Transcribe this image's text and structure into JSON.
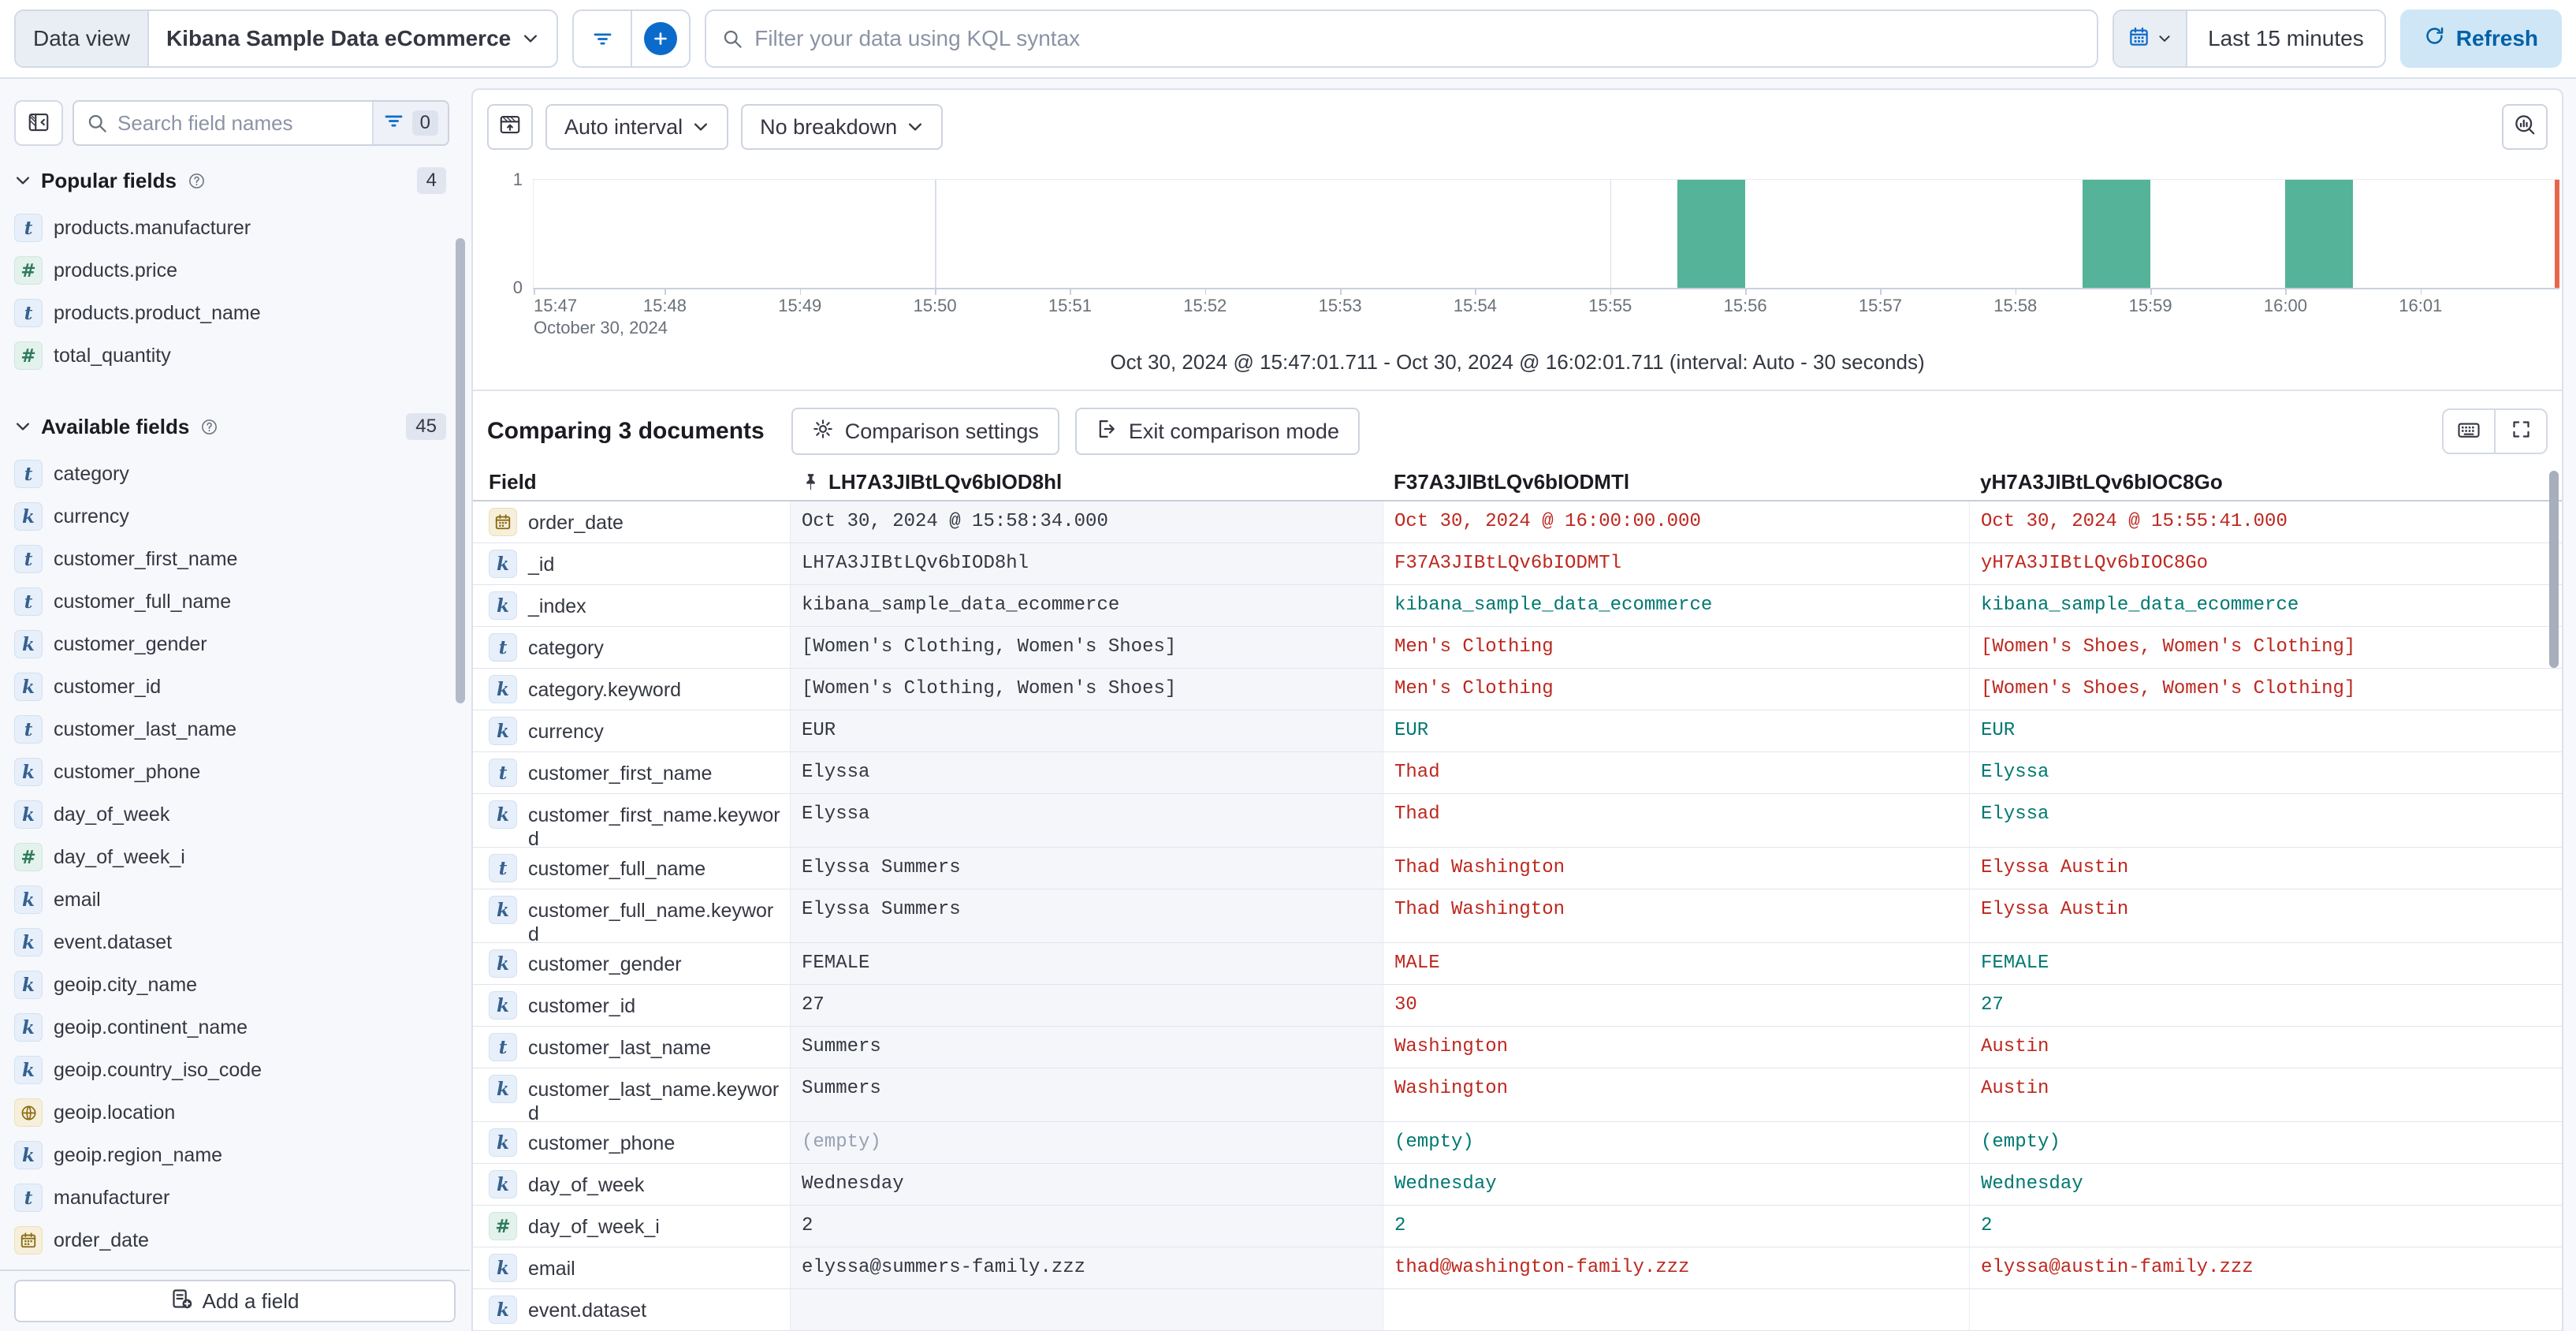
{
  "top_bar": {
    "data_view_label": "Data view",
    "data_view_value": "Kibana Sample Data eCommerce",
    "kql_placeholder": "Filter your data using KQL syntax",
    "time_range": "Last 15 minutes",
    "refresh_label": "Refresh"
  },
  "sidebar": {
    "search_placeholder": "Search field names",
    "filter_count": "0",
    "sections": [
      {
        "title": "Popular fields",
        "count": "4",
        "fields": [
          {
            "type": "text",
            "name": "products.manufacturer"
          },
          {
            "type": "number",
            "name": "products.price"
          },
          {
            "type": "text",
            "name": "products.product_name"
          },
          {
            "type": "number",
            "name": "total_quantity"
          }
        ]
      },
      {
        "title": "Available fields",
        "count": "45",
        "fields": [
          {
            "type": "text",
            "name": "category"
          },
          {
            "type": "keyword",
            "name": "currency"
          },
          {
            "type": "text",
            "name": "customer_first_name"
          },
          {
            "type": "text",
            "name": "customer_full_name"
          },
          {
            "type": "keyword",
            "name": "customer_gender"
          },
          {
            "type": "keyword",
            "name": "customer_id"
          },
          {
            "type": "text",
            "name": "customer_last_name"
          },
          {
            "type": "keyword",
            "name": "customer_phone"
          },
          {
            "type": "keyword",
            "name": "day_of_week"
          },
          {
            "type": "number",
            "name": "day_of_week_i"
          },
          {
            "type": "keyword",
            "name": "email"
          },
          {
            "type": "keyword",
            "name": "event.dataset"
          },
          {
            "type": "keyword",
            "name": "geoip.city_name"
          },
          {
            "type": "keyword",
            "name": "geoip.continent_name"
          },
          {
            "type": "keyword",
            "name": "geoip.country_iso_code"
          },
          {
            "type": "geo_point",
            "name": "geoip.location"
          },
          {
            "type": "keyword",
            "name": "geoip.region_name"
          },
          {
            "type": "text",
            "name": "manufacturer"
          },
          {
            "type": "date",
            "name": "order_date"
          }
        ]
      }
    ],
    "add_field_label": "Add a field"
  },
  "chart": {
    "interval_label": "Auto interval",
    "breakdown_label": "No breakdown",
    "footer": "Oct 30, 2024 @ 15:47:01.711 - Oct 30, 2024 @ 16:02:01.711 (interval: Auto - 30 seconds)"
  },
  "chart_data": {
    "type": "bar",
    "x_start": "15:47:01.711",
    "x_end": "16:02:01.711",
    "x_date_label": "October 30, 2024",
    "x_ticks": [
      "15:47",
      "15:48",
      "15:49",
      "15:50",
      "15:51",
      "15:52",
      "15:53",
      "15:54",
      "15:55",
      "15:56",
      "15:57",
      "15:58",
      "15:59",
      "16:00",
      "16:01"
    ],
    "major_gridlines": [
      "15:50",
      "15:55",
      "16:00"
    ],
    "y_ticks": [
      0,
      1
    ],
    "ylim": [
      0,
      1
    ],
    "bar_interval_seconds": 30,
    "bars": [
      {
        "time": "15:55:30",
        "value": 1
      },
      {
        "time": "15:58:30",
        "value": 1
      },
      {
        "time": "16:00:00",
        "value": 1
      }
    ],
    "end_marker_time": "16:02:01.711",
    "bar_color": "#54b399",
    "end_marker_color": "#e7664c",
    "legend": "off",
    "grid": "minimal"
  },
  "comparison": {
    "title": "Comparing 3 documents",
    "settings_label": "Comparison settings",
    "exit_label": "Exit comparison mode"
  },
  "table": {
    "field_header": "Field",
    "doc_columns": [
      {
        "id": "LH7A3JIBtLQv6bIOD8hl",
        "pinned": true
      },
      {
        "id": "F37A3JIBtLQv6bIODMTl",
        "pinned": false
      },
      {
        "id": "yH7A3JIBtLQv6bIOC8Go",
        "pinned": false
      }
    ],
    "rows": [
      {
        "field": "order_date",
        "icon": "date",
        "values": [
          {
            "text": "Oct 30, 2024 @ 15:58:34.000",
            "status": "base"
          },
          {
            "text": "Oct 30, 2024 @ 16:00:00.000",
            "status": "diff"
          },
          {
            "text": "Oct 30, 2024 @ 15:55:41.000",
            "status": "diff"
          }
        ]
      },
      {
        "field": "_id",
        "icon": "keyword",
        "values": [
          {
            "text": "LH7A3JIBtLQv6bIOD8hl",
            "status": "base"
          },
          {
            "text": "F37A3JIBtLQv6bIODMTl",
            "status": "diff"
          },
          {
            "text": "yH7A3JIBtLQv6bIOC8Go",
            "status": "diff"
          }
        ]
      },
      {
        "field": "_index",
        "icon": "keyword",
        "values": [
          {
            "text": "kibana_sample_data_ecommerce",
            "status": "base"
          },
          {
            "text": "kibana_sample_data_ecommerce",
            "status": "match"
          },
          {
            "text": "kibana_sample_data_ecommerce",
            "status": "match"
          }
        ]
      },
      {
        "field": "category",
        "icon": "text",
        "values": [
          {
            "text": "[Women's Clothing, Women's Shoes]",
            "status": "base"
          },
          {
            "text": "Men's Clothing",
            "status": "diff"
          },
          {
            "text": "[Women's Shoes, Women's Clothing]",
            "status": "diff"
          }
        ]
      },
      {
        "field": "category.keyword",
        "icon": "keyword",
        "values": [
          {
            "text": "[Women's Clothing, Women's Shoes]",
            "status": "base"
          },
          {
            "text": "Men's Clothing",
            "status": "diff"
          },
          {
            "text": "[Women's Shoes, Women's Clothing]",
            "status": "diff"
          }
        ]
      },
      {
        "field": "currency",
        "icon": "keyword",
        "values": [
          {
            "text": "EUR",
            "status": "base"
          },
          {
            "text": "EUR",
            "status": "match"
          },
          {
            "text": "EUR",
            "status": "match"
          }
        ]
      },
      {
        "field": "customer_first_name",
        "icon": "text",
        "values": [
          {
            "text": "Elyssa",
            "status": "base"
          },
          {
            "text": "Thad",
            "status": "diff"
          },
          {
            "text": "Elyssa",
            "status": "match"
          }
        ]
      },
      {
        "field": "customer_first_name.keyword",
        "icon": "keyword",
        "values": [
          {
            "text": "Elyssa",
            "status": "base"
          },
          {
            "text": "Thad",
            "status": "diff"
          },
          {
            "text": "Elyssa",
            "status": "match"
          }
        ]
      },
      {
        "field": "customer_full_name",
        "icon": "text",
        "values": [
          {
            "text": "Elyssa Summers",
            "status": "base"
          },
          {
            "text": "Thad Washington",
            "status": "diff"
          },
          {
            "text": "Elyssa Austin",
            "status": "diff"
          }
        ]
      },
      {
        "field": "customer_full_name.keyword",
        "icon": "keyword",
        "values": [
          {
            "text": "Elyssa Summers",
            "status": "base"
          },
          {
            "text": "Thad Washington",
            "status": "diff"
          },
          {
            "text": "Elyssa Austin",
            "status": "diff"
          }
        ]
      },
      {
        "field": "customer_gender",
        "icon": "keyword",
        "values": [
          {
            "text": "FEMALE",
            "status": "base"
          },
          {
            "text": "MALE",
            "status": "diff"
          },
          {
            "text": "FEMALE",
            "status": "match"
          }
        ]
      },
      {
        "field": "customer_id",
        "icon": "keyword",
        "values": [
          {
            "text": "27",
            "status": "base"
          },
          {
            "text": "30",
            "status": "diff"
          },
          {
            "text": "27",
            "status": "match"
          }
        ]
      },
      {
        "field": "customer_last_name",
        "icon": "text",
        "values": [
          {
            "text": "Summers",
            "status": "base"
          },
          {
            "text": "Washington",
            "status": "diff"
          },
          {
            "text": "Austin",
            "status": "diff"
          }
        ]
      },
      {
        "field": "customer_last_name.keyword",
        "icon": "keyword",
        "values": [
          {
            "text": "Summers",
            "status": "base"
          },
          {
            "text": "Washington",
            "status": "diff"
          },
          {
            "text": "Austin",
            "status": "diff"
          }
        ]
      },
      {
        "field": "customer_phone",
        "icon": "keyword",
        "values": [
          {
            "text": "(empty)",
            "status": "muted"
          },
          {
            "text": "(empty)",
            "status": "match"
          },
          {
            "text": "(empty)",
            "status": "match"
          }
        ]
      },
      {
        "field": "day_of_week",
        "icon": "keyword",
        "values": [
          {
            "text": "Wednesday",
            "status": "base"
          },
          {
            "text": "Wednesday",
            "status": "match"
          },
          {
            "text": "Wednesday",
            "status": "match"
          }
        ]
      },
      {
        "field": "day_of_week_i",
        "icon": "number",
        "values": [
          {
            "text": "2",
            "status": "base"
          },
          {
            "text": "2",
            "status": "match"
          },
          {
            "text": "2",
            "status": "match"
          }
        ]
      },
      {
        "field": "email",
        "icon": "keyword",
        "values": [
          {
            "text": "elyssa@summers-family.zzz",
            "status": "base"
          },
          {
            "text": "thad@washington-family.zzz",
            "status": "diff"
          },
          {
            "text": "elyssa@austin-family.zzz",
            "status": "diff"
          }
        ]
      },
      {
        "field": "event.dataset",
        "icon": "keyword",
        "values": [
          {
            "text": "",
            "status": "base"
          },
          {
            "text": "",
            "status": "match"
          },
          {
            "text": "",
            "status": "match"
          }
        ]
      }
    ]
  },
  "colors": {
    "accent_blue": "#0b6bcb",
    "refresh_bg": "#cfe6f7",
    "refresh_text": "#0061a6",
    "diff_red": "#bd271e",
    "match_green": "#007871",
    "bar_green": "#54b399",
    "end_marker_red": "#e7664c",
    "base_column_bg": "#f4f6fa"
  }
}
